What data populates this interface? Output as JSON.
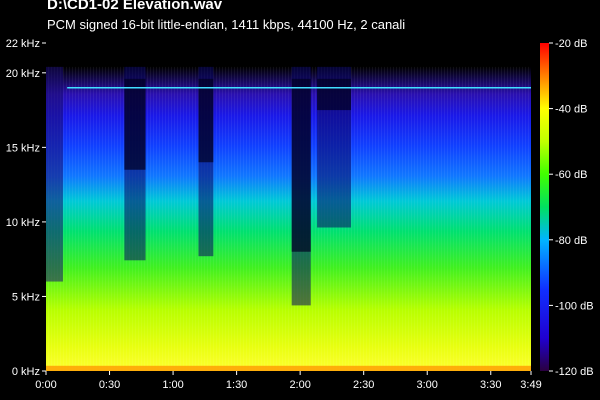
{
  "chart_data": {
    "type": "heatmap",
    "title": "D:\\CD1-02 Elevation.wav",
    "subtitle": "PCM signed 16-bit little-endian, 1411 kbps, 44100 Hz, 2 canali",
    "x_ticks": [
      "0:00",
      "0:30",
      "1:00",
      "1:30",
      "2:00",
      "2:30",
      "3:00",
      "3:30",
      "3:49"
    ],
    "x_tick_seconds": [
      0,
      30,
      60,
      90,
      120,
      150,
      180,
      210,
      229
    ],
    "xlim_seconds": [
      0,
      229
    ],
    "y_ticks": [
      "0 kHz",
      "5 kHz",
      "10 kHz",
      "15 kHz",
      "20 kHz",
      "22 kHz"
    ],
    "y_tick_khz": [
      0,
      5,
      10,
      15,
      20,
      22
    ],
    "ylim_khz": [
      0,
      22
    ],
    "colorbar_ticks": [
      "-20 dB",
      "-40 dB",
      "-60 dB",
      "-80 dB",
      "-100 dB",
      "-120 dB"
    ],
    "colorbar_db": [
      -20,
      -40,
      -60,
      -80,
      -100,
      -120
    ],
    "colorbar_range_db": [
      -120,
      -20
    ],
    "colormap": [
      "#2a0040",
      "#2000d0",
      "#1030ff",
      "#00b4ff",
      "#00e060",
      "#40ff00",
      "#c0ff00",
      "#ffff00",
      "#ff8000",
      "#ff0000"
    ],
    "tone_line_khz": 19,
    "tone_start_seconds": 10,
    "quiet_regions": [
      {
        "start_s": 37,
        "end_s": 47,
        "top_khz": 13.5
      },
      {
        "start_s": 72,
        "end_s": 79,
        "top_khz": 14
      },
      {
        "start_s": 128,
        "end_s": 144,
        "top_khz": 17.5
      },
      {
        "start_s": 116,
        "end_s": 125,
        "top_khz": 8
      }
    ]
  }
}
